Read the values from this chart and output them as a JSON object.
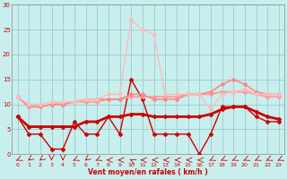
{
  "xlabel": "Vent moyen/en rafales ( km/h )",
  "xlim": [
    -0.5,
    23.5
  ],
  "ylim": [
    0,
    30
  ],
  "yticks": [
    0,
    5,
    10,
    15,
    20,
    25,
    30
  ],
  "xticks": [
    0,
    1,
    2,
    3,
    4,
    5,
    6,
    7,
    8,
    9,
    10,
    11,
    12,
    13,
    14,
    15,
    16,
    17,
    18,
    19,
    20,
    21,
    22,
    23
  ],
  "bg_color": "#c8eeed",
  "grid_color": "#99cccc",
  "series": [
    {
      "x": [
        0,
        1,
        2,
        3,
        4,
        5,
        6,
        7,
        8,
        9,
        10,
        11,
        12,
        13,
        14,
        15,
        16,
        17,
        18,
        19,
        20,
        21,
        22,
        23
      ],
      "y": [
        7.5,
        4,
        4,
        1,
        1,
        6.5,
        4,
        4,
        7.5,
        4,
        15,
        11,
        4,
        4,
        4,
        4,
        0,
        4,
        9.5,
        9.5,
        9.5,
        7.5,
        6.5,
        6.5
      ],
      "color": "#cc0000",
      "lw": 1.0,
      "marker": "D",
      "ms": 2.0
    },
    {
      "x": [
        0,
        1,
        2,
        3,
        4,
        5,
        6,
        7,
        8,
        9,
        10,
        11,
        12,
        13,
        14,
        15,
        16,
        17,
        18,
        19,
        20,
        21,
        22,
        23
      ],
      "y": [
        7.5,
        5.5,
        5.5,
        5.5,
        5.5,
        5.5,
        6.5,
        6.5,
        7.5,
        7.5,
        8.0,
        8.0,
        7.5,
        7.5,
        7.5,
        7.5,
        7.5,
        8.0,
        9.0,
        9.5,
        9.5,
        8.5,
        7.5,
        7.0
      ],
      "color": "#cc0000",
      "lw": 2.0,
      "marker": "D",
      "ms": 2.0
    },
    {
      "x": [
        0,
        1,
        2,
        3,
        4,
        5,
        6,
        7,
        8,
        9,
        10,
        11,
        12,
        13,
        14,
        15,
        16,
        17,
        18,
        19,
        20,
        21,
        22,
        23
      ],
      "y": [
        11.5,
        9.5,
        9.5,
        10.0,
        10.0,
        10.5,
        10.5,
        10.5,
        11.0,
        11.0,
        11.5,
        11.5,
        11.5,
        11.5,
        11.5,
        12.0,
        12.0,
        12.0,
        12.5,
        12.5,
        12.5,
        12.0,
        11.5,
        11.5
      ],
      "color": "#ff9999",
      "lw": 1.2,
      "marker": "D",
      "ms": 2.0
    },
    {
      "x": [
        0,
        1,
        2,
        3,
        4,
        5,
        6,
        7,
        8,
        9,
        10,
        11,
        12,
        13,
        14,
        15,
        16,
        17,
        18,
        19,
        20,
        21,
        22,
        23
      ],
      "y": [
        11.5,
        9.5,
        9.5,
        10.0,
        10.0,
        10.5,
        11.0,
        11.0,
        11.0,
        11.0,
        12.0,
        12.0,
        11.0,
        11.0,
        11.0,
        12.0,
        12.0,
        12.5,
        14.0,
        15.0,
        14.0,
        12.5,
        12.0,
        12.0
      ],
      "color": "#ff8888",
      "lw": 1.2,
      "marker": "D",
      "ms": 2.0
    },
    {
      "x": [
        0,
        1,
        2,
        3,
        4,
        5,
        6,
        7,
        8,
        9,
        10,
        11,
        12,
        13,
        14,
        15,
        16,
        17,
        18,
        19,
        20,
        21,
        22,
        23
      ],
      "y": [
        11.5,
        10.0,
        10.0,
        10.5,
        10.5,
        10.5,
        11.0,
        11.0,
        12.0,
        12.0,
        27.0,
        25.0,
        24.0,
        12.0,
        12.0,
        12.0,
        12.0,
        9.0,
        12.0,
        12.5,
        13.0,
        12.0,
        12.0,
        12.0
      ],
      "color": "#ffbbbb",
      "lw": 1.0,
      "marker": "D",
      "ms": 2.0
    }
  ],
  "arrow_angles": [
    225,
    210,
    210,
    180,
    180,
    225,
    210,
    225,
    270,
    270,
    315,
    270,
    270,
    270,
    270,
    270,
    270,
    225,
    225,
    225,
    225,
    225,
    225,
    225
  ],
  "arrow_color": "#cc0000"
}
